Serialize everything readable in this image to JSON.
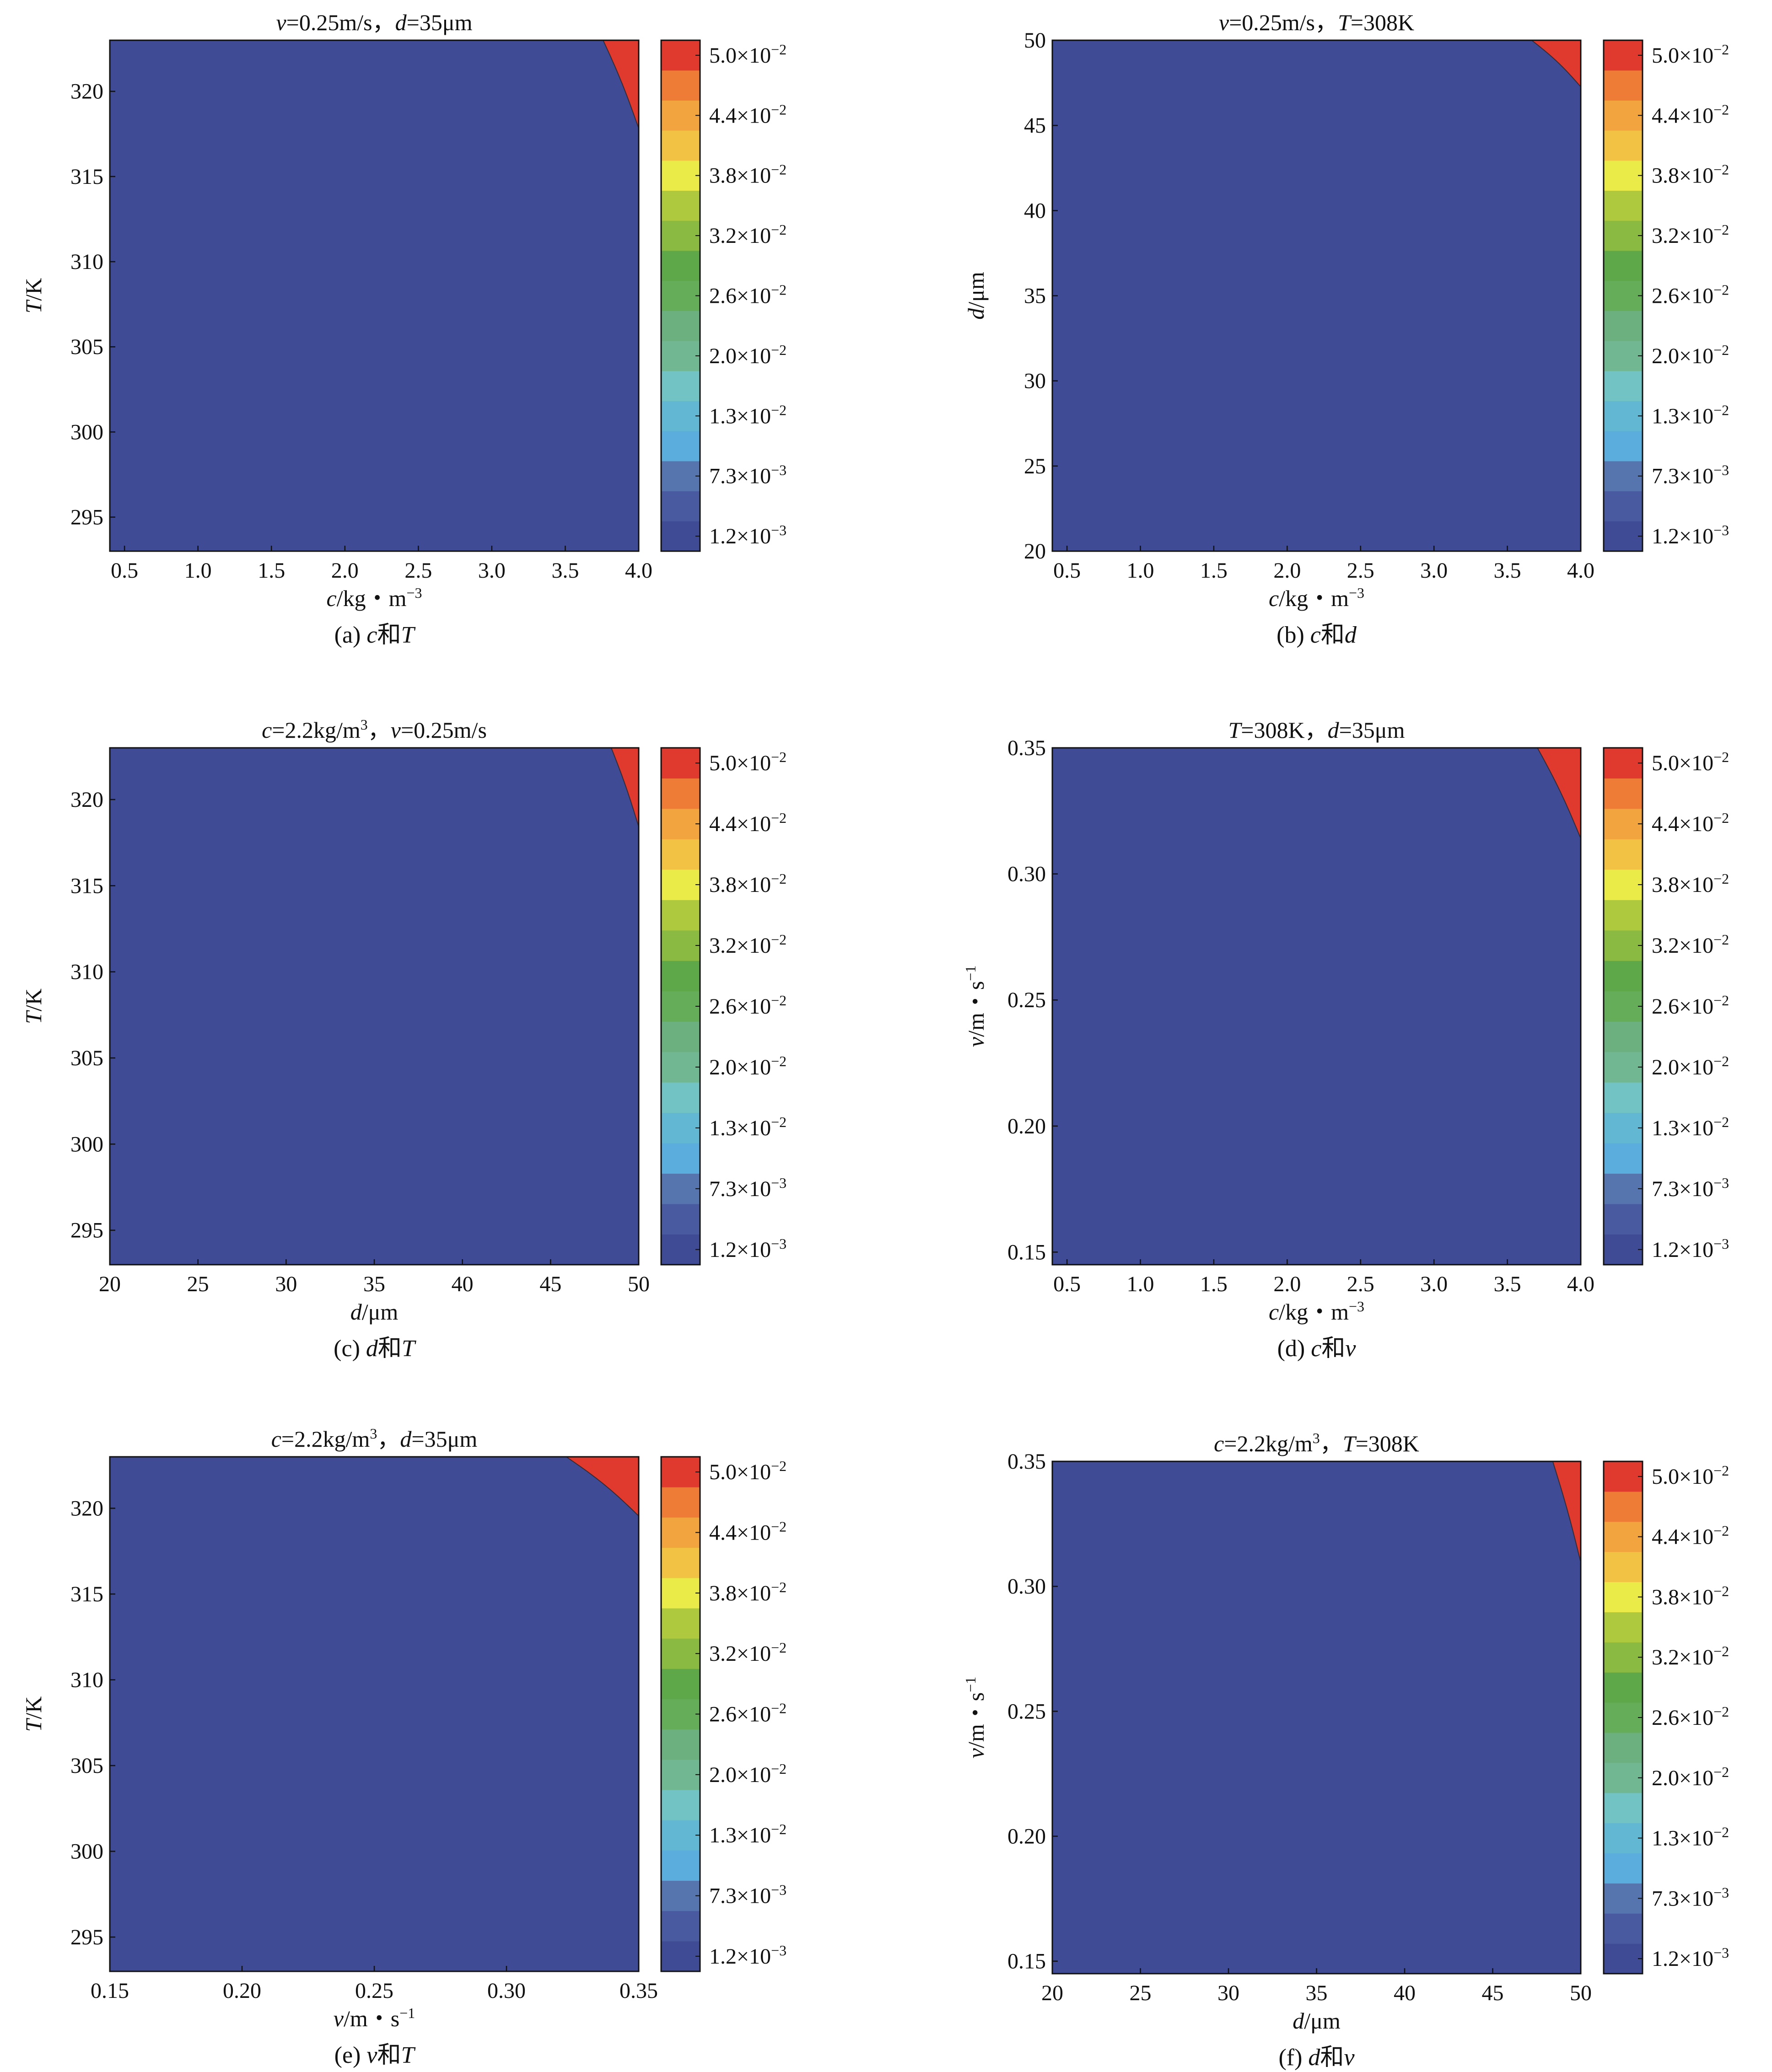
{
  "figure": {
    "panels": [
      {
        "id": "a",
        "chart_data": {
          "type": "contour",
          "title_parts": [
            {
              "t": "v",
              "i": true
            },
            {
              "t": "=0.25m/s，",
              "i": false
            },
            {
              "t": "d",
              "i": true
            },
            {
              "t": "=35μm",
              "i": false
            }
          ],
          "x_label_parts": [
            {
              "t": "c",
              "i": true
            },
            {
              "t": "/kg・m",
              "i": false
            },
            {
              "t": "−3",
              "sup": true
            }
          ],
          "y_label_parts": [
            {
              "t": "T",
              "i": true
            },
            {
              "t": "/K",
              "i": false
            }
          ],
          "caption_parts": [
            {
              "t": "(a) ",
              "i": false
            },
            {
              "t": "c",
              "i": true
            },
            {
              "t": "和",
              "i": false
            },
            {
              "t": "T",
              "i": true
            }
          ],
          "x_ticks": [
            "0.5",
            "1.0",
            "1.5",
            "2.0",
            "2.5",
            "3.0",
            "3.5",
            "4.0"
          ],
          "x_tick_values": [
            0.5,
            1.0,
            1.5,
            2.0,
            2.5,
            3.0,
            3.5,
            4.0
          ],
          "xlim": [
            0.4,
            4.0
          ],
          "y_ticks": [
            "295",
            "300",
            "305",
            "310",
            "315",
            "320"
          ],
          "y_tick_values": [
            295,
            300,
            305,
            310,
            315,
            320
          ],
          "ylim": [
            293,
            323
          ],
          "model": {
            "a": 0.1286,
            "b": 0.0519,
            "k": 2.5
          }
        }
      },
      {
        "id": "b",
        "chart_data": {
          "type": "contour",
          "title_parts": [
            {
              "t": "v",
              "i": true
            },
            {
              "t": "=0.25m/s，",
              "i": false
            },
            {
              "t": "T",
              "i": true
            },
            {
              "t": "=308K",
              "i": false
            }
          ],
          "x_label_parts": [
            {
              "t": "c",
              "i": true
            },
            {
              "t": "/kg・m",
              "i": false
            },
            {
              "t": "−3",
              "sup": true
            }
          ],
          "y_label_parts": [
            {
              "t": "d",
              "i": true
            },
            {
              "t": "/μm",
              "i": false
            }
          ],
          "caption_parts": [
            {
              "t": "(b) ",
              "i": false
            },
            {
              "t": "c",
              "i": true
            },
            {
              "t": "和",
              "i": false
            },
            {
              "t": "d",
              "i": true
            }
          ],
          "x_ticks": [
            "0.5",
            "1.0",
            "1.5",
            "2.0",
            "2.5",
            "3.0",
            "3.5",
            "4.0"
          ],
          "x_tick_values": [
            0.5,
            1.0,
            1.5,
            2.0,
            2.5,
            3.0,
            3.5,
            4.0
          ],
          "xlim": [
            0.4,
            4.0
          ],
          "y_ticks": [
            "20",
            "25",
            "30",
            "35",
            "40",
            "45",
            "50"
          ],
          "y_tick_values": [
            20,
            25,
            30,
            35,
            40,
            45,
            50
          ],
          "ylim": [
            20,
            50
          ],
          "model": {
            "a": 0.0932,
            "b": 0.0983,
            "k": 2.5
          }
        }
      },
      {
        "id": "c",
        "chart_data": {
          "type": "contour",
          "title_parts": [
            {
              "t": "c",
              "i": true
            },
            {
              "t": "=2.2kg/m",
              "i": false
            },
            {
              "t": "3",
              "sup": true
            },
            {
              "t": "，",
              "i": false
            },
            {
              "t": "v",
              "i": true
            },
            {
              "t": "=0.25m/s",
              "i": false
            }
          ],
          "x_label_parts": [
            {
              "t": "d",
              "i": true
            },
            {
              "t": "/μm",
              "i": false
            }
          ],
          "y_label_parts": [
            {
              "t": "T",
              "i": true
            },
            {
              "t": "/K",
              "i": false
            }
          ],
          "caption_parts": [
            {
              "t": "(c) ",
              "i": false
            },
            {
              "t": "d",
              "i": true
            },
            {
              "t": "和",
              "i": false
            },
            {
              "t": "T",
              "i": true
            }
          ],
          "x_ticks": [
            "20",
            "25",
            "30",
            "35",
            "40",
            "45",
            "50"
          ],
          "x_tick_values": [
            20,
            25,
            30,
            35,
            40,
            45,
            50
          ],
          "xlim": [
            20,
            50
          ],
          "y_ticks": [
            "295",
            "300",
            "305",
            "310",
            "315",
            "320"
          ],
          "y_tick_values": [
            295,
            300,
            305,
            310,
            315,
            320
          ],
          "ylim": [
            293,
            323
          ],
          "model": {
            "a": 0.1667,
            "b": 0.0579,
            "k": 2.5
          }
        }
      },
      {
        "id": "d",
        "chart_data": {
          "type": "contour",
          "title_parts": [
            {
              "t": "T",
              "i": true
            },
            {
              "t": "=308K，",
              "i": false
            },
            {
              "t": "d",
              "i": true
            },
            {
              "t": "=35μm",
              "i": false
            }
          ],
          "x_label_parts": [
            {
              "t": "c",
              "i": true
            },
            {
              "t": "/kg・m",
              "i": false
            },
            {
              "t": "−3",
              "sup": true
            }
          ],
          "y_label_parts": [
            {
              "t": "v",
              "i": true
            },
            {
              "t": "/m・s",
              "i": false
            },
            {
              "t": "−1",
              "sup": true
            }
          ],
          "caption_parts": [
            {
              "t": "(d) ",
              "i": false
            },
            {
              "t": "c",
              "i": true
            },
            {
              "t": "和",
              "i": false
            },
            {
              "t": "v",
              "i": true
            }
          ],
          "x_ticks": [
            "0.5",
            "1.0",
            "1.5",
            "2.0",
            "2.5",
            "3.0",
            "3.5",
            "4.0"
          ],
          "x_tick_values": [
            0.5,
            1.0,
            1.5,
            2.0,
            2.5,
            3.0,
            3.5,
            4.0
          ],
          "xlim": [
            0.4,
            4.0
          ],
          "y_ticks": [
            "0.15",
            "0.20",
            "0.25",
            "0.30",
            "0.35"
          ],
          "y_tick_values": [
            0.15,
            0.2,
            0.25,
            0.3,
            0.35
          ],
          "ylim": [
            0.145,
            0.35
          ],
          "model": {
            "a": 0.1056,
            "b": 0.0505,
            "k": 2.5
          }
        }
      },
      {
        "id": "e",
        "chart_data": {
          "type": "contour",
          "title_parts": [
            {
              "t": "c",
              "i": true
            },
            {
              "t": "=2.2kg/m",
              "i": false
            },
            {
              "t": "3",
              "sup": true
            },
            {
              "t": "，",
              "i": false
            },
            {
              "t": "d",
              "i": true
            },
            {
              "t": "=35μm",
              "i": false
            }
          ],
          "x_label_parts": [
            {
              "t": "v",
              "i": true
            },
            {
              "t": "/m・s",
              "i": false
            },
            {
              "t": "−1",
              "sup": true
            }
          ],
          "y_label_parts": [
            {
              "t": "T",
              "i": true
            },
            {
              "t": "/K",
              "i": false
            }
          ],
          "caption_parts": [
            {
              "t": "(e) ",
              "i": false
            },
            {
              "t": "v",
              "i": true
            },
            {
              "t": "和",
              "i": false
            },
            {
              "t": "T",
              "i": true
            }
          ],
          "x_ticks": [
            "0.15",
            "0.20",
            "0.25",
            "0.30",
            "0.35"
          ],
          "x_tick_values": [
            0.15,
            0.2,
            0.25,
            0.3,
            0.35
          ],
          "xlim": [
            0.15,
            0.35
          ],
          "y_ticks": [
            "295",
            "300",
            "305",
            "310",
            "315",
            "320"
          ],
          "y_tick_values": [
            295,
            300,
            305,
            310,
            315,
            320
          ],
          "ylim": [
            293,
            323
          ],
          "model": {
            "a": 0.0632,
            "b": 0.0773,
            "k": 2.5
          }
        }
      },
      {
        "id": "f",
        "chart_data": {
          "type": "contour",
          "title_parts": [
            {
              "t": "c",
              "i": true
            },
            {
              "t": "=2.2kg/m",
              "i": false
            },
            {
              "t": "3",
              "sup": true
            },
            {
              "t": "，",
              "i": false
            },
            {
              "t": "T",
              "i": true
            },
            {
              "t": "=308K",
              "i": false
            }
          ],
          "x_label_parts": [
            {
              "t": "d",
              "i": true
            },
            {
              "t": "/μm",
              "i": false
            }
          ],
          "y_label_parts": [
            {
              "t": "v",
              "i": true
            },
            {
              "t": "/m・s",
              "i": false
            },
            {
              "t": "−1",
              "sup": true
            }
          ],
          "caption_parts": [
            {
              "t": "(f) ",
              "i": false
            },
            {
              "t": "d",
              "i": true
            },
            {
              "t": "和",
              "i": false
            },
            {
              "t": "v",
              "i": true
            }
          ],
          "x_ticks": [
            "20",
            "25",
            "30",
            "35",
            "40",
            "45",
            "50"
          ],
          "x_tick_values": [
            20,
            25,
            30,
            35,
            40,
            45,
            50
          ],
          "xlim": [
            20,
            50
          ],
          "y_ticks": [
            "0.15",
            "0.20",
            "0.25",
            "0.30",
            "0.35"
          ],
          "y_tick_values": [
            0.15,
            0.2,
            0.25,
            0.3,
            0.35
          ],
          "ylim": [
            0.145,
            0.35
          ],
          "model": {
            "a": 0.1633,
            "b": 0.0453,
            "k": 2.5
          }
        }
      }
    ],
    "colorbar": {
      "labels": [
        {
          "m": "5.0",
          "e": "−2"
        },
        {
          "m": "4.4",
          "e": "−2"
        },
        {
          "m": "3.8",
          "e": "−2"
        },
        {
          "m": "3.2",
          "e": "−2"
        },
        {
          "m": "2.6",
          "e": "−2"
        },
        {
          "m": "2.0",
          "e": "−2"
        },
        {
          "m": "1.3",
          "e": "−2"
        },
        {
          "m": "7.3",
          "e": "−3"
        },
        {
          "m": "1.2",
          "e": "−3"
        }
      ],
      "levels": [
        0.0012,
        0.0042,
        0.0073,
        0.0101,
        0.013,
        0.0165,
        0.02,
        0.023,
        0.026,
        0.029,
        0.032,
        0.035,
        0.038,
        0.041,
        0.044,
        0.047,
        0.05
      ],
      "colors": [
        "#3f4b94",
        "#4a5aa0",
        "#5674ad",
        "#5aaddd",
        "#62b7d3",
        "#72c3c4",
        "#70b792",
        "#6db07f",
        "#66ad59",
        "#5ea84a",
        "#8bba43",
        "#aec93e",
        "#eaea48",
        "#f1c243",
        "#f2a43e",
        "#ee7c37",
        "#e0392e"
      ]
    }
  }
}
